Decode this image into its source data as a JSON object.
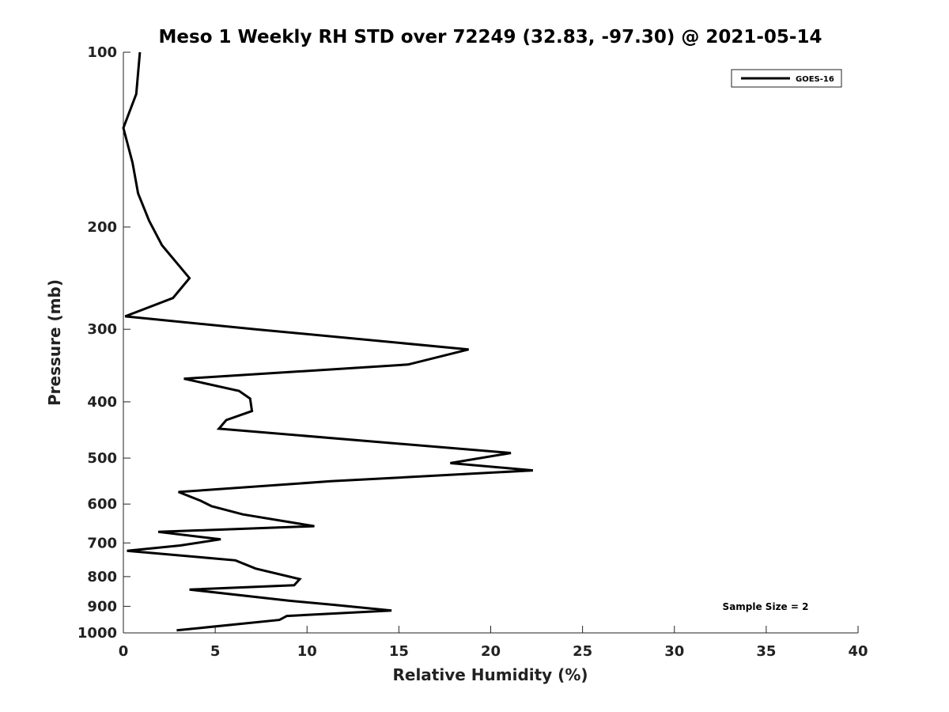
{
  "chart_data": {
    "type": "line",
    "title": "Meso 1 Weekly RH STD over 72249 (32.83, -97.30) @ 2021-05-14",
    "xlabel": "Relative Humidity (%)",
    "ylabel": "Pressure (mb)",
    "xlim": [
      0,
      40
    ],
    "ylim": [
      1000,
      100
    ],
    "y_scale": "log",
    "x_ticks": [
      0,
      5,
      10,
      15,
      20,
      25,
      30,
      35,
      40
    ],
    "y_ticks": [
      100,
      200,
      300,
      400,
      500,
      600,
      700,
      800,
      900,
      1000
    ],
    "grid": false,
    "legend_position": "top-right",
    "annotation": "Sample Size = 2",
    "series": [
      {
        "name": "GOES-16",
        "color": "#000000",
        "x": [
          0.9,
          0.7,
          0.0,
          0.5,
          0.8,
          1.4,
          2.1,
          3.6,
          2.7,
          0.1,
          7.2,
          18.8,
          15.5,
          3.3,
          6.3,
          6.9,
          7.0,
          5.6,
          5.2,
          21.1,
          17.8,
          22.3,
          11.3,
          3.0,
          4.2,
          4.8,
          6.5,
          10.4,
          1.9,
          5.3,
          3.1,
          0.2,
          6.1,
          7.2,
          9.6,
          9.3,
          3.6,
          9.0,
          11.5,
          14.6,
          8.9,
          8.5,
          2.9
        ],
        "y": [
          100,
          118,
          135,
          155,
          175,
          195,
          215,
          245,
          265,
          285,
          300,
          325,
          345,
          365,
          383,
          395,
          415,
          430,
          445,
          490,
          510,
          525,
          548,
          572,
          592,
          605,
          625,
          655,
          670,
          690,
          707,
          722,
          750,
          775,
          808,
          828,
          842,
          880,
          895,
          915,
          935,
          950,
          990
        ]
      }
    ]
  }
}
